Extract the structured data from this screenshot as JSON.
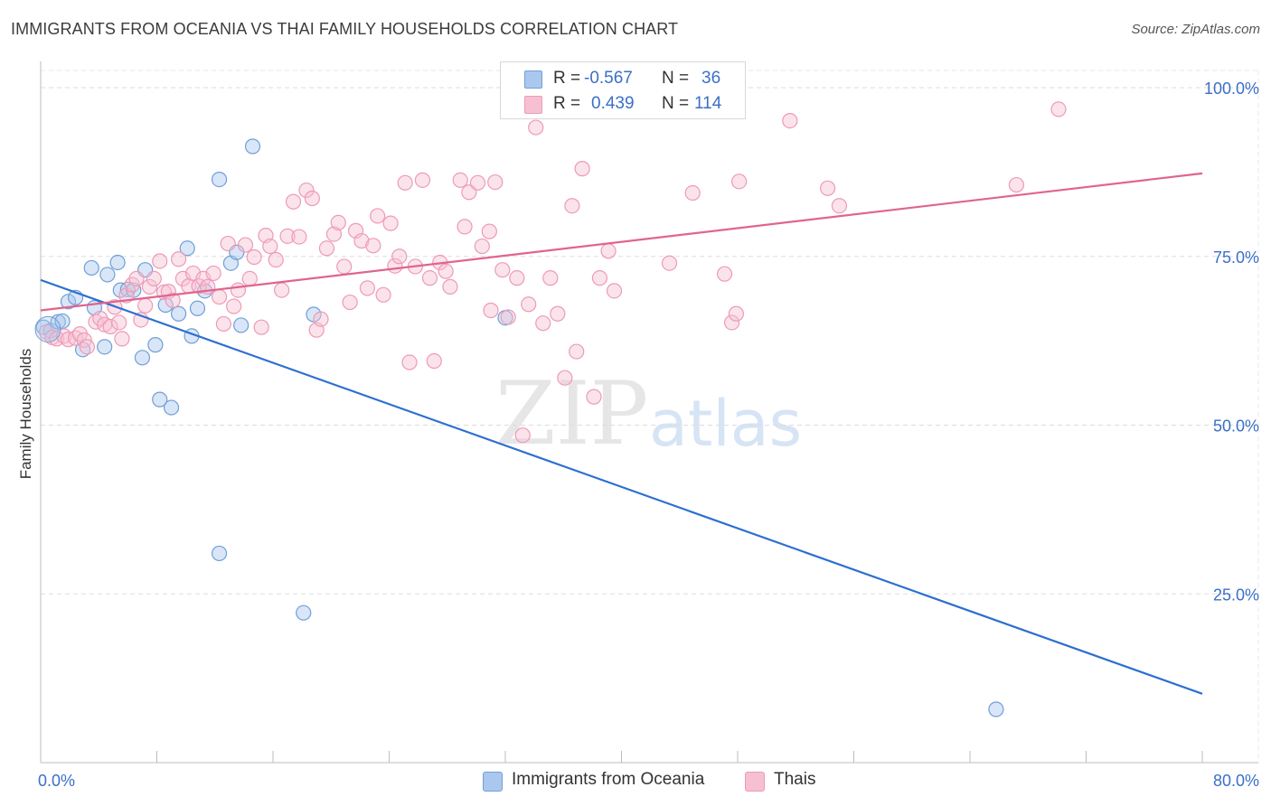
{
  "header": {
    "title": "IMMIGRANTS FROM OCEANIA VS THAI FAMILY HOUSEHOLDS CORRELATION CHART",
    "source": "Source: ZipAtlas.com"
  },
  "watermark": {
    "zip": "ZIP",
    "atlas": "atlas"
  },
  "legend": {
    "r_label": "R =",
    "n_label": "N =",
    "series": [
      {
        "name": "Immigrants from Oceania",
        "r": "-0.567",
        "n": "36"
      },
      {
        "name": "Thais",
        "r": "0.439",
        "n": "114"
      }
    ]
  },
  "colors": {
    "blue_fill": "#aac8ee",
    "blue_stroke": "#6f9fd8",
    "blue_line": "#2c6fd0",
    "pink_fill": "#f6c0d2",
    "pink_stroke": "#ee9ab6",
    "pink_line": "#e0648e",
    "axis_text": "#3b6fc8"
  },
  "chart_data": {
    "type": "scatter",
    "title": "IMMIGRANTS FROM OCEANIA VS THAI FAMILY HOUSEHOLDS CORRELATION CHART",
    "xlabel": "",
    "ylabel": "Family Households",
    "xlim": [
      0,
      80
    ],
    "ylim": [
      0,
      100
    ],
    "x_tick_labels": [
      "0.0%",
      "80.0%"
    ],
    "y_tick_labels": [
      "100.0%",
      "75.0%",
      "50.0%",
      "25.0%"
    ],
    "y_ticks": [
      100,
      75,
      50,
      25
    ],
    "grid": true,
    "legend_position": "top-center",
    "series": [
      {
        "name": "Immigrants from Oceania",
        "trend": {
          "x": [
            0,
            80
          ],
          "y": [
            71.5,
            10.2
          ]
        },
        "points": [
          [
            0.2,
            64.5
          ],
          [
            0.7,
            64.0
          ],
          [
            1.2,
            65.3
          ],
          [
            1.5,
            65.4
          ],
          [
            1.9,
            68.3
          ],
          [
            2.4,
            68.9
          ],
          [
            2.9,
            61.2
          ],
          [
            3.5,
            73.3
          ],
          [
            3.7,
            67.4
          ],
          [
            4.4,
            61.6
          ],
          [
            4.6,
            72.3
          ],
          [
            5.3,
            74.1
          ],
          [
            5.5,
            70.0
          ],
          [
            6.0,
            70.1
          ],
          [
            6.4,
            70.0
          ],
          [
            7.0,
            60.0
          ],
          [
            7.2,
            73.0
          ],
          [
            7.9,
            61.9
          ],
          [
            8.2,
            53.8
          ],
          [
            8.6,
            67.8
          ],
          [
            9.0,
            52.6
          ],
          [
            9.5,
            66.5
          ],
          [
            10.1,
            76.2
          ],
          [
            10.4,
            63.2
          ],
          [
            10.8,
            67.3
          ],
          [
            11.3,
            69.9
          ],
          [
            12.3,
            86.4
          ],
          [
            12.3,
            31.0
          ],
          [
            13.1,
            74.0
          ],
          [
            13.5,
            75.6
          ],
          [
            13.8,
            64.8
          ],
          [
            14.6,
            91.3
          ],
          [
            18.1,
            22.2
          ],
          [
            18.8,
            66.4
          ],
          [
            32.0,
            65.9
          ],
          [
            65.8,
            7.9
          ]
        ]
      },
      {
        "name": "Thais",
        "trend": {
          "x": [
            0,
            80
          ],
          "y": [
            67.0,
            87.3
          ]
        },
        "points": [
          [
            0.4,
            63.8
          ],
          [
            0.8,
            63.0
          ],
          [
            1.1,
            62.8
          ],
          [
            1.6,
            63.2
          ],
          [
            1.9,
            62.7
          ],
          [
            2.4,
            62.9
          ],
          [
            2.7,
            63.5
          ],
          [
            3.0,
            62.6
          ],
          [
            3.2,
            61.6
          ],
          [
            3.8,
            65.3
          ],
          [
            4.1,
            65.8
          ],
          [
            4.4,
            64.9
          ],
          [
            4.8,
            64.6
          ],
          [
            5.1,
            67.5
          ],
          [
            5.4,
            65.2
          ],
          [
            5.6,
            62.8
          ],
          [
            5.9,
            69.2
          ],
          [
            6.3,
            70.8
          ],
          [
            6.6,
            71.7
          ],
          [
            6.9,
            65.6
          ],
          [
            7.2,
            67.7
          ],
          [
            7.5,
            70.5
          ],
          [
            7.8,
            71.7
          ],
          [
            8.2,
            74.3
          ],
          [
            8.5,
            69.7
          ],
          [
            8.8,
            69.8
          ],
          [
            9.1,
            68.5
          ],
          [
            9.5,
            74.6
          ],
          [
            9.8,
            71.7
          ],
          [
            10.2,
            70.6
          ],
          [
            10.5,
            72.5
          ],
          [
            10.9,
            70.6
          ],
          [
            11.2,
            71.7
          ],
          [
            11.5,
            70.5
          ],
          [
            11.9,
            72.5
          ],
          [
            12.3,
            69.0
          ],
          [
            12.6,
            65.0
          ],
          [
            12.9,
            76.9
          ],
          [
            13.3,
            67.6
          ],
          [
            13.6,
            70.0
          ],
          [
            14.1,
            76.7
          ],
          [
            14.4,
            71.7
          ],
          [
            14.7,
            74.9
          ],
          [
            15.2,
            64.5
          ],
          [
            15.5,
            78.1
          ],
          [
            15.8,
            76.5
          ],
          [
            16.2,
            74.5
          ],
          [
            16.6,
            70.0
          ],
          [
            17.0,
            78.0
          ],
          [
            17.4,
            83.1
          ],
          [
            17.8,
            77.9
          ],
          [
            18.3,
            84.8
          ],
          [
            18.7,
            83.6
          ],
          [
            19.0,
            64.1
          ],
          [
            19.3,
            65.7
          ],
          [
            19.7,
            76.2
          ],
          [
            20.2,
            78.3
          ],
          [
            20.5,
            80.0
          ],
          [
            20.9,
            73.5
          ],
          [
            21.3,
            68.2
          ],
          [
            21.7,
            78.8
          ],
          [
            22.1,
            77.3
          ],
          [
            22.5,
            70.3
          ],
          [
            22.9,
            76.6
          ],
          [
            23.2,
            81.0
          ],
          [
            23.6,
            69.3
          ],
          [
            24.1,
            79.9
          ],
          [
            24.4,
            73.6
          ],
          [
            24.7,
            75.0
          ],
          [
            25.1,
            85.9
          ],
          [
            25.4,
            59.3
          ],
          [
            25.8,
            73.5
          ],
          [
            26.3,
            86.3
          ],
          [
            26.8,
            71.8
          ],
          [
            27.1,
            59.5
          ],
          [
            27.5,
            74.1
          ],
          [
            27.9,
            72.8
          ],
          [
            28.2,
            70.5
          ],
          [
            28.9,
            86.3
          ],
          [
            29.2,
            79.4
          ],
          [
            29.5,
            84.5
          ],
          [
            30.1,
            85.9
          ],
          [
            30.4,
            76.5
          ],
          [
            30.9,
            78.7
          ],
          [
            31.3,
            86.0
          ],
          [
            31.8,
            73.0
          ],
          [
            32.2,
            66.0
          ],
          [
            32.8,
            71.8
          ],
          [
            33.2,
            48.5
          ],
          [
            33.6,
            67.9
          ],
          [
            34.1,
            94.1
          ],
          [
            34.6,
            65.1
          ],
          [
            35.1,
            71.8
          ],
          [
            35.6,
            66.5
          ],
          [
            36.1,
            57.0
          ],
          [
            36.6,
            82.5
          ],
          [
            36.9,
            60.9
          ],
          [
            37.3,
            88.0
          ],
          [
            38.1,
            54.2
          ],
          [
            38.5,
            71.8
          ],
          [
            39.1,
            75.8
          ],
          [
            39.5,
            69.9
          ],
          [
            43.3,
            74.0
          ],
          [
            44.9,
            84.4
          ],
          [
            47.1,
            72.4
          ],
          [
            47.6,
            65.2
          ],
          [
            47.9,
            66.5
          ],
          [
            48.1,
            86.1
          ],
          [
            51.6,
            95.1
          ],
          [
            54.2,
            85.1
          ],
          [
            55.0,
            82.5
          ],
          [
            67.2,
            85.6
          ],
          [
            70.1,
            96.8
          ],
          [
            31.0,
            67.0
          ]
        ]
      }
    ]
  }
}
